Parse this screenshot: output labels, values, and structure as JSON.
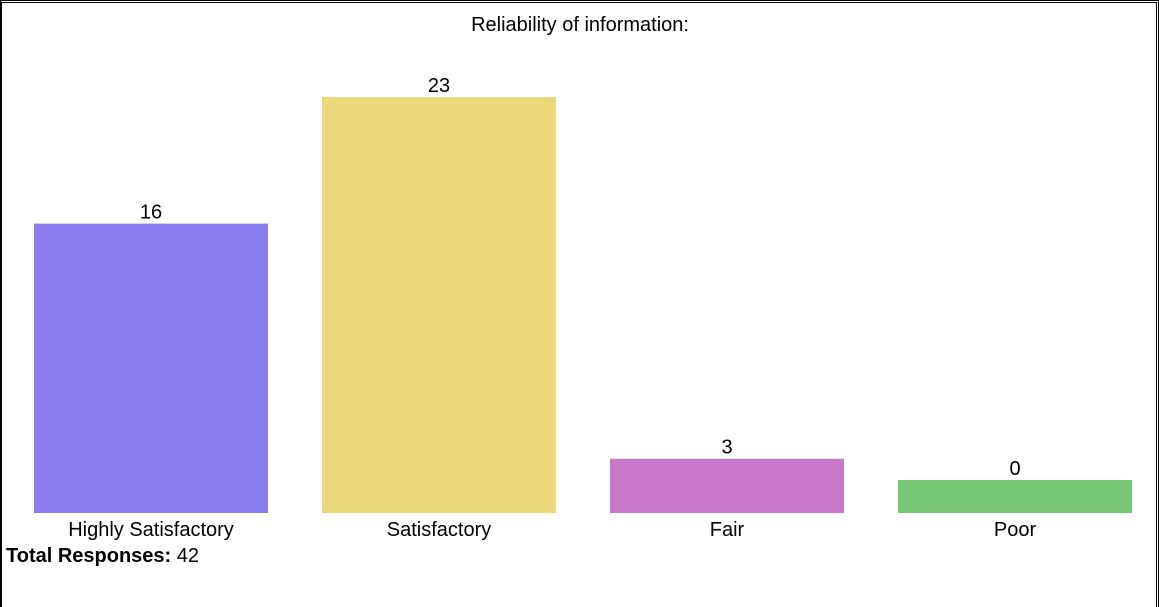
{
  "chart_data": {
    "type": "bar",
    "title": "Reliability of information:",
    "categories": [
      "Highly Satisfactory",
      "Satisfactory",
      "Fair",
      "Poor"
    ],
    "values": [
      16,
      23,
      3,
      0
    ],
    "colors": [
      "#8b7cf0",
      "#ead87a",
      "#c878c8",
      "#78c878"
    ],
    "xlabel": "",
    "ylabel": "",
    "ylim": [
      0,
      23
    ],
    "grid": false,
    "legend": "none"
  },
  "footer": {
    "total_label": "Total Responses:",
    "total_value": "42"
  }
}
